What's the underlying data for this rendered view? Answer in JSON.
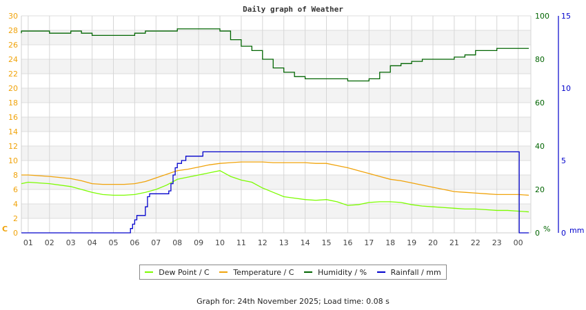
{
  "chart_data": {
    "type": "line",
    "title": "Daily graph of Weather",
    "xlabel": "",
    "x_ticks": [
      "01",
      "02",
      "03",
      "04",
      "05",
      "06",
      "07",
      "08",
      "09",
      "10",
      "11",
      "12",
      "13",
      "14",
      "15",
      "16",
      "17",
      "18",
      "19",
      "20",
      "21",
      "22",
      "23",
      "00"
    ],
    "left_axis": {
      "label": "C",
      "ticks": [
        0,
        2,
        4,
        6,
        8,
        10,
        12,
        14,
        16,
        18,
        20,
        22,
        24,
        26,
        28,
        30
      ],
      "range": [
        0,
        30
      ],
      "color": "#f0a30a"
    },
    "right_axis_1": {
      "label": "%",
      "ticks": [
        0,
        20,
        40,
        60,
        80,
        100
      ],
      "range": [
        0,
        100
      ],
      "color": "#006400"
    },
    "right_axis_2": {
      "label": "mm",
      "ticks": [
        0,
        5,
        10,
        15
      ],
      "range": [
        0,
        15
      ],
      "color": "#0000cc"
    },
    "grid": true,
    "legend_position": "bottom",
    "series": [
      {
        "name": "Dew Point / C",
        "axis": "left",
        "color": "#7cfc00",
        "x": [
          0.0,
          1.0,
          2.0,
          3.0,
          3.5,
          4.0,
          4.5,
          5.0,
          5.5,
          6.0,
          6.5,
          7.0,
          7.5,
          8.0,
          8.5,
          9.0,
          9.5,
          10.0,
          10.5,
          11.0,
          11.5,
          12.0,
          12.5,
          13.0,
          13.5,
          14.0,
          14.5,
          15.0,
          15.5,
          16.0,
          16.5,
          17.0,
          17.5,
          18.0,
          18.5,
          19.0,
          19.5,
          20.0,
          20.5,
          21.0,
          21.5,
          22.0,
          22.5,
          23.0,
          23.5,
          24.0,
          24.5
        ],
        "values": [
          6.8,
          7.0,
          6.8,
          6.4,
          6.0,
          5.6,
          5.3,
          5.2,
          5.2,
          5.3,
          5.6,
          6.0,
          6.6,
          7.4,
          7.7,
          8.0,
          8.3,
          8.6,
          7.8,
          7.3,
          7.0,
          6.2,
          5.6,
          5.0,
          4.8,
          4.6,
          4.5,
          4.6,
          4.3,
          3.8,
          3.9,
          4.2,
          4.3,
          4.3,
          4.2,
          3.9,
          3.7,
          3.6,
          3.5,
          3.4,
          3.3,
          3.3,
          3.2,
          3.1,
          3.1,
          3.0,
          2.9
        ]
      },
      {
        "name": "Temperature / C",
        "axis": "left",
        "color": "#f0a30a",
        "x": [
          0.0,
          1.0,
          2.0,
          3.0,
          3.5,
          4.0,
          4.5,
          5.0,
          5.5,
          6.0,
          6.5,
          7.0,
          7.5,
          8.0,
          8.5,
          9.0,
          9.5,
          10.0,
          10.5,
          11.0,
          11.5,
          12.0,
          12.5,
          13.0,
          13.5,
          14.0,
          14.5,
          15.0,
          15.5,
          16.0,
          16.5,
          17.0,
          17.5,
          18.0,
          18.5,
          19.0,
          19.5,
          20.0,
          20.5,
          21.0,
          21.5,
          22.0,
          22.5,
          23.0,
          23.5,
          24.0,
          24.5
        ],
        "values": [
          8.0,
          8.0,
          7.8,
          7.5,
          7.2,
          6.8,
          6.7,
          6.7,
          6.7,
          6.8,
          7.1,
          7.6,
          8.1,
          8.6,
          8.8,
          9.1,
          9.4,
          9.6,
          9.7,
          9.8,
          9.8,
          9.8,
          9.7,
          9.7,
          9.7,
          9.7,
          9.6,
          9.6,
          9.3,
          9.0,
          8.6,
          8.2,
          7.8,
          7.4,
          7.2,
          6.9,
          6.6,
          6.3,
          6.0,
          5.7,
          5.6,
          5.5,
          5.4,
          5.3,
          5.3,
          5.3,
          5.2
        ]
      },
      {
        "name": "Humidity / %",
        "axis": "right_1",
        "color": "#006400",
        "x": [
          0.0,
          0.5,
          1.0,
          1.5,
          2.0,
          2.5,
          3.0,
          3.5,
          4.0,
          5.0,
          5.5,
          6.0,
          6.5,
          7.0,
          8.0,
          8.5,
          9.0,
          9.5,
          10.0,
          10.5,
          11.0,
          11.5,
          12.0,
          12.5,
          13.0,
          13.5,
          14.0,
          14.5,
          15.0,
          15.5,
          16.0,
          16.5,
          17.0,
          17.5,
          18.0,
          18.5,
          19.0,
          19.5,
          20.0,
          20.5,
          21.0,
          21.5,
          22.0,
          23.0,
          24.0,
          24.5
        ],
        "values": [
          92,
          93,
          93,
          93,
          92,
          92,
          93,
          92,
          91,
          91,
          91,
          92,
          93,
          93,
          94,
          94,
          94,
          94,
          93,
          89,
          86,
          84,
          80,
          76,
          74,
          72,
          71,
          71,
          71,
          71,
          70,
          70,
          71,
          74,
          77,
          78,
          79,
          80,
          80,
          80,
          81,
          82,
          84,
          85,
          85,
          85
        ]
      },
      {
        "name": "Rainfall / mm",
        "axis": "right_2",
        "color": "#0000cc",
        "x": [
          0.0,
          5.7,
          5.8,
          5.9,
          6.0,
          6.1,
          6.4,
          6.5,
          6.6,
          6.7,
          6.9,
          7.0,
          7.6,
          7.7,
          7.8,
          7.9,
          8.0,
          8.2,
          8.4,
          8.6,
          9.0,
          9.2,
          9.3,
          24.0,
          24.05,
          24.5
        ],
        "values": [
          0.0,
          0.0,
          0.3,
          0.6,
          0.9,
          1.2,
          1.2,
          1.8,
          2.5,
          2.7,
          2.7,
          2.7,
          2.9,
          3.4,
          4.0,
          4.5,
          4.8,
          5.0,
          5.3,
          5.3,
          5.3,
          5.6,
          5.6,
          5.6,
          0.0,
          0.0
        ]
      }
    ]
  },
  "legend": [
    {
      "label": "Dew Point / C",
      "color": "#7cfc00"
    },
    {
      "label": "Temperature / C",
      "color": "#f0a30a"
    },
    {
      "label": "Humidity / %",
      "color": "#006400"
    },
    {
      "label": "Rainfall / mm",
      "color": "#0000cc"
    }
  ],
  "footer": "Graph for: 24th November 2025; Load time: 0.08 s"
}
